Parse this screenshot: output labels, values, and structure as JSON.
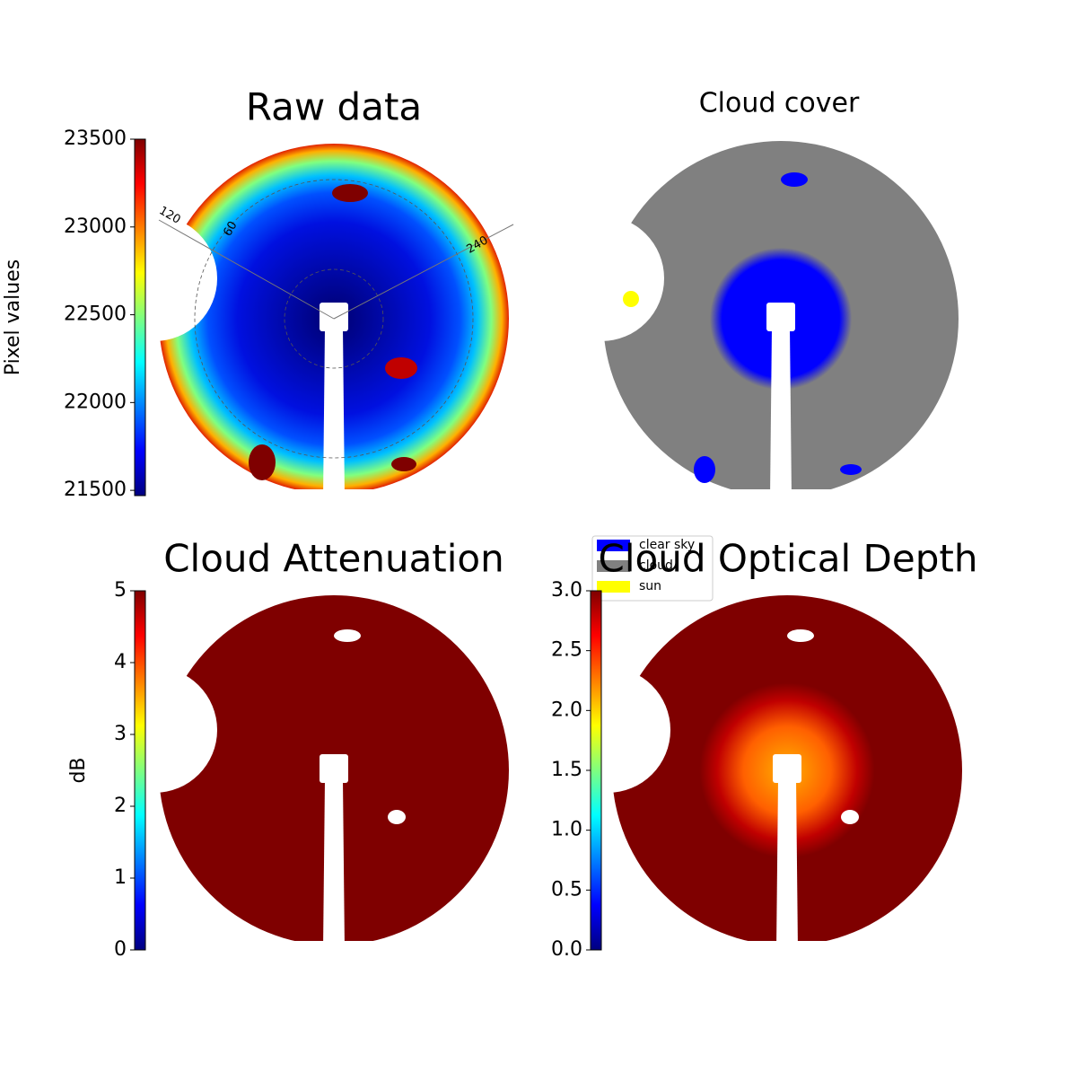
{
  "chart_data": [
    {
      "type": "image",
      "title": "Raw data",
      "colorbar_label": "Pixel values",
      "colormap": [
        "#00007f",
        "#0000ff",
        "#007fff",
        "#00ffff",
        "#7fff7f",
        "#ffff00",
        "#ff7f00",
        "#ff0000",
        "#7f0000"
      ],
      "clim": [
        21470,
        23500
      ],
      "cticks": [
        21500,
        22000,
        22500,
        23000,
        23500
      ],
      "annotations": [
        "120",
        "60",
        "240"
      ]
    },
    {
      "type": "image",
      "title": "Cloud cover",
      "series": [
        {
          "name": "clear sky",
          "color": "#0000ff"
        },
        {
          "name": "cloud",
          "color": "#808080"
        },
        {
          "name": "sun",
          "color": "#ffff00"
        }
      ]
    },
    {
      "type": "image",
      "title": "Cloud Attenuation",
      "colorbar_label": "dB",
      "colormap": [
        "#00007f",
        "#0000ff",
        "#007fff",
        "#00ffff",
        "#7fff7f",
        "#ffff00",
        "#ff7f00",
        "#ff0000",
        "#7f0000"
      ],
      "clim": [
        0,
        5
      ],
      "cticks": [
        0,
        1,
        2,
        3,
        4,
        5
      ]
    },
    {
      "type": "image",
      "title": "Cloud Optical Depth",
      "colormap": [
        "#00007f",
        "#0000ff",
        "#007fff",
        "#00ffff",
        "#7fff7f",
        "#ffff00",
        "#ff7f00",
        "#ff0000",
        "#7f0000"
      ],
      "clim": [
        0,
        3
      ],
      "cticks": [
        {
          "value": 0,
          "label": "0.0"
        },
        {
          "value": 0.5,
          "label": "0.5"
        },
        {
          "value": 1,
          "label": "1.0"
        },
        {
          "value": 1.5,
          "label": "1.5"
        },
        {
          "value": 2,
          "label": "2.0"
        },
        {
          "value": 2.5,
          "label": "2.5"
        },
        {
          "value": 3,
          "label": "3.0"
        }
      ]
    }
  ]
}
